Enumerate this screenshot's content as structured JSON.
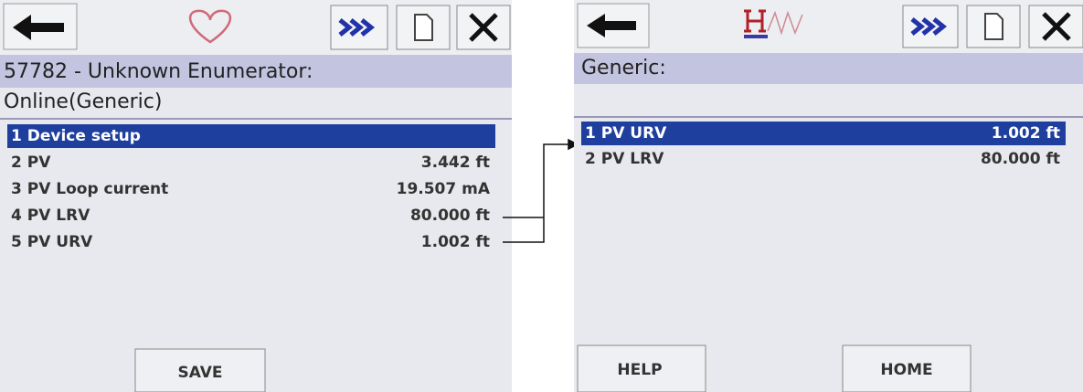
{
  "left_screen": {
    "title": "57782 - Unknown Enumerator:",
    "subtitle": "Online(Generic)",
    "items": [
      {
        "label": "1 Device setup"
      },
      {
        "label": "2 PV",
        "value": "3.442 ft"
      },
      {
        "label": "3 PV Loop current",
        "value": "19.507 mA"
      },
      {
        "label": "4 PV LRV",
        "value": "80.000 ft"
      },
      {
        "label": "5 PV URV",
        "value": "1.002 ft"
      }
    ],
    "buttons": [
      "SAVE"
    ]
  },
  "right_screen": {
    "title": "Generic:",
    "items": [
      {
        "label": "1 PV URV",
        "value": "1.002 ft"
      },
      {
        "label": "2 PV LRV",
        "value": "80.000 ft"
      }
    ],
    "buttons": [
      "HELP",
      "HOME"
    ]
  }
}
